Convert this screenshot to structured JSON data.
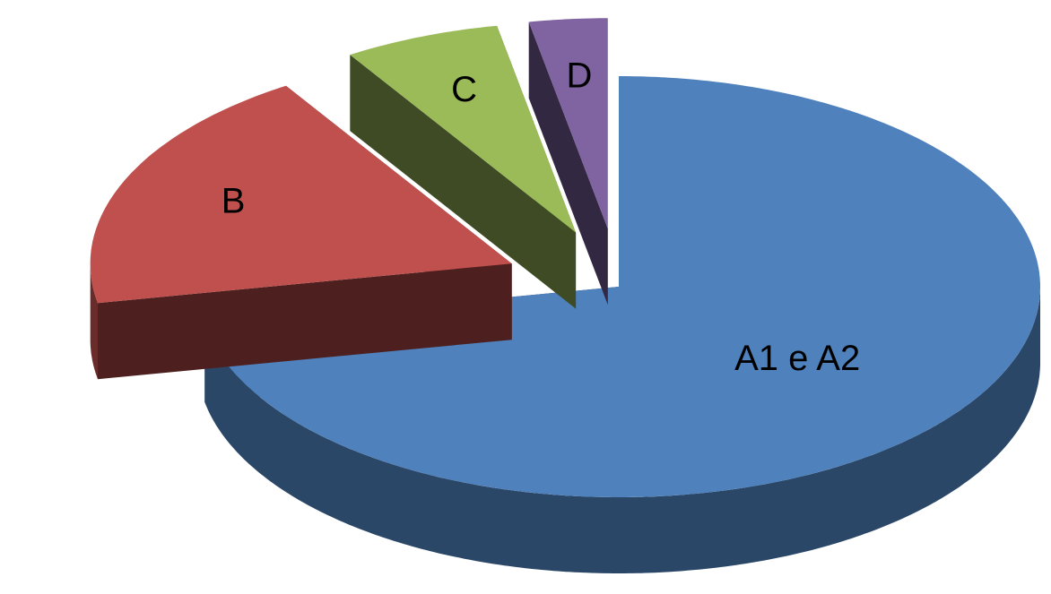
{
  "chart_data": {
    "type": "pie",
    "categories": [
      "A1 e A2",
      "B",
      "C",
      "D"
    ],
    "values": [
      72,
      19,
      6,
      3
    ],
    "colors": [
      "#4f81bd",
      "#c0504d",
      "#9bbb59",
      "#8064a2"
    ]
  }
}
